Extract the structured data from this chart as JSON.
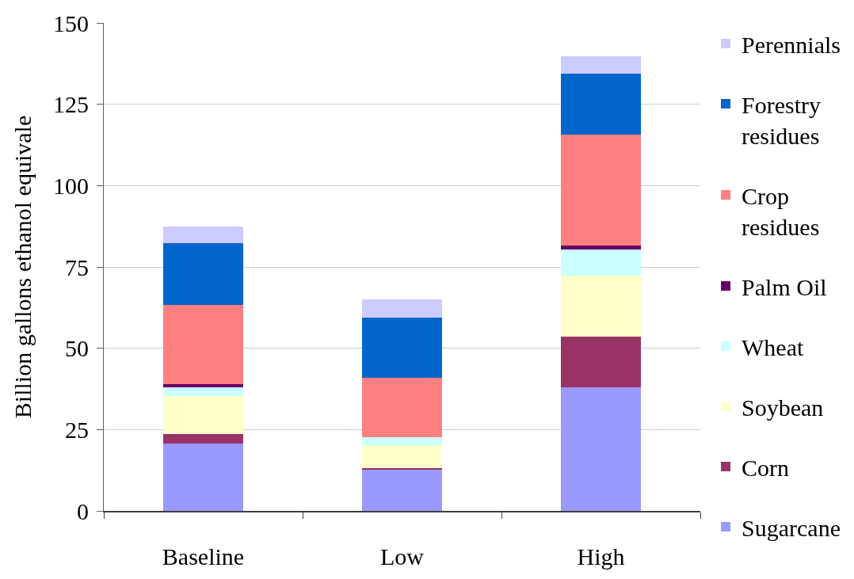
{
  "chart_data": {
    "type": "bar",
    "stacked": true,
    "ylabel": "Billion gallons ethanol equivale",
    "categories": [
      "Baseline",
      "Low",
      "High"
    ],
    "ylim": [
      0,
      150
    ],
    "yticks": [
      0,
      25,
      50,
      75,
      100,
      125,
      150
    ],
    "grid": "y",
    "legend": "right",
    "series": [
      {
        "name": "Sugarcane",
        "color": "#9999ff",
        "values": [
          20.7,
          12.7,
          38.0
        ]
      },
      {
        "name": "Corn",
        "color": "#993366",
        "values": [
          2.8,
          0.5,
          15.5
        ]
      },
      {
        "name": "Soybean",
        "color": "#ffffcc",
        "values": [
          11.7,
          7.1,
          18.8
        ]
      },
      {
        "name": "Wheat",
        "color": "#ccffff",
        "values": [
          2.8,
          2.3,
          8.0
        ]
      },
      {
        "name": "Palm Oil",
        "color": "#660066",
        "values": [
          1.0,
          0,
          1.2
        ]
      },
      {
        "name": "Crop residues",
        "color": "#ff8080",
        "values": [
          24.4,
          18.3,
          34.2
        ]
      },
      {
        "name": "Forestry residues",
        "color": "#0066cc",
        "values": [
          18.8,
          18.6,
          18.8
        ]
      },
      {
        "name": "Perennials",
        "color": "#ccccff",
        "values": [
          5.1,
          5.4,
          5.2
        ]
      }
    ]
  }
}
